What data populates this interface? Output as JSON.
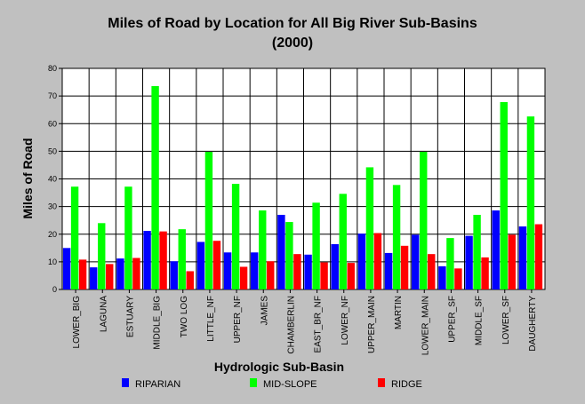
{
  "chart_data": {
    "type": "bar",
    "title": "Miles of Road by Location for All Big River Sub-Basins",
    "subtitle": "(2000)",
    "xlabel": "Hydrologic Sub-Basin",
    "ylabel": "Miles of Road",
    "ylim": [
      0,
      80
    ],
    "yticks": [
      0,
      10,
      20,
      30,
      40,
      50,
      60,
      70,
      80
    ],
    "grid": true,
    "legend_position": "bottom",
    "categories": [
      "LOWER_BIG",
      "LAGUNA",
      "ESTUARY",
      "MIDDLE_BIG",
      "TWO LOG",
      "LITTLE_NF",
      "UPPER_NF",
      "JAMES",
      "CHAMBERLIN",
      "EAST_BR_NF",
      "LOWER_NF",
      "UPPER_MAIN",
      "MARTIN",
      "LOWER_MAIN",
      "UPPER_SF",
      "MIDDLE_SF",
      "LOWER_SF",
      "DAUGHERTY"
    ],
    "series": [
      {
        "name": "RIPARIAN",
        "color": "#0000ff",
        "values": [
          15.0,
          8.0,
          11.2,
          21.2,
          10.2,
          17.2,
          13.4,
          13.4,
          27.0,
          12.6,
          16.4,
          20.2,
          13.2,
          19.8,
          8.4,
          19.4,
          28.6,
          22.8
        ]
      },
      {
        "name": "MID-SLOPE",
        "color": "#00ff00",
        "values": [
          37.2,
          24.0,
          37.2,
          73.6,
          21.8,
          49.8,
          38.2,
          28.6,
          24.4,
          31.4,
          34.6,
          44.2,
          37.8,
          49.8,
          18.6,
          27.0,
          67.8,
          62.6
        ]
      },
      {
        "name": "RIDGE",
        "color": "#ff0000",
        "values": [
          10.8,
          9.2,
          11.4,
          21.0,
          6.6,
          17.6,
          8.2,
          10.2,
          12.8,
          9.8,
          9.6,
          20.4,
          15.8,
          12.8,
          7.6,
          11.6,
          19.8,
          23.6
        ]
      }
    ]
  }
}
